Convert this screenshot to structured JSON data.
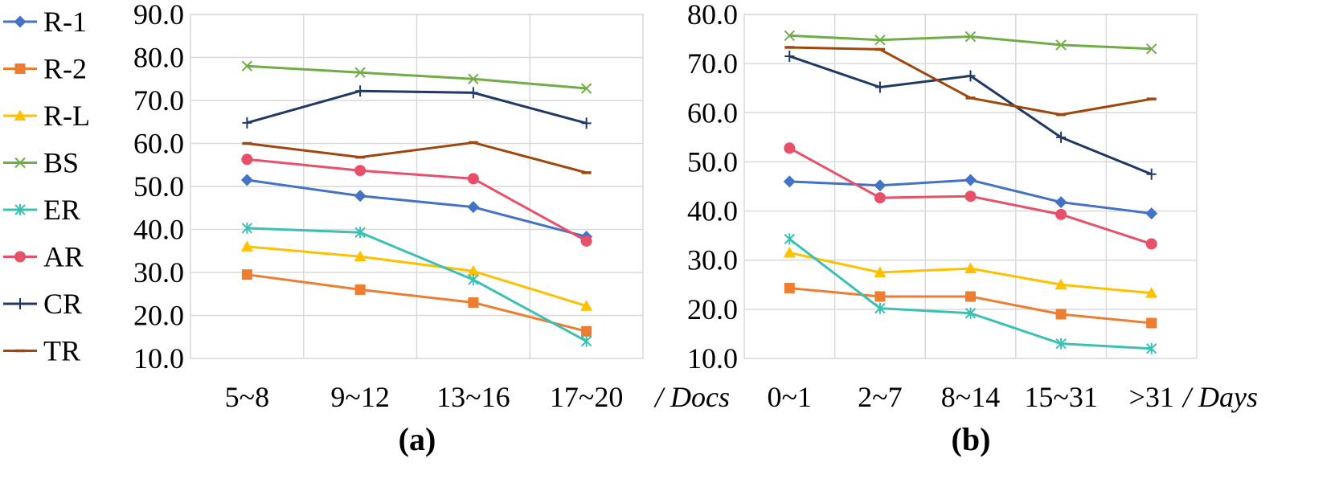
{
  "chart_data": [
    {
      "type": "line",
      "title": "",
      "sublabel": "(a)",
      "xlabel": "/ Docs",
      "ylabel": "",
      "ylim": [
        10,
        90
      ],
      "yticks": [
        10,
        20,
        30,
        40,
        50,
        60,
        70,
        80,
        90
      ],
      "categories": [
        "5~8",
        "9~12",
        "13~16",
        "17~20"
      ],
      "series": [
        {
          "name": "R-1",
          "values": [
            51.5,
            47.8,
            45.2,
            38.3
          ]
        },
        {
          "name": "R-2",
          "values": [
            29.5,
            26.0,
            23.0,
            16.3
          ]
        },
        {
          "name": "R-L",
          "values": [
            36.0,
            33.7,
            30.3,
            22.2
          ]
        },
        {
          "name": "BS",
          "values": [
            78.0,
            76.5,
            75.0,
            72.8
          ]
        },
        {
          "name": "ER",
          "values": [
            40.3,
            39.3,
            28.3,
            14.0
          ]
        },
        {
          "name": "AR",
          "values": [
            56.3,
            53.7,
            51.8,
            37.3
          ]
        },
        {
          "name": "CR",
          "values": [
            64.8,
            72.2,
            71.8,
            64.7
          ]
        },
        {
          "name": "TR",
          "values": [
            60.0,
            56.8,
            60.2,
            53.2
          ]
        }
      ]
    },
    {
      "type": "line",
      "title": "",
      "sublabel": "(b)",
      "xlabel": "/ Days",
      "ylabel": "",
      "ylim": [
        10,
        80
      ],
      "yticks": [
        10,
        20,
        30,
        40,
        50,
        60,
        70,
        80
      ],
      "categories": [
        "0~1",
        "2~7",
        "8~14",
        "15~31",
        ">31"
      ],
      "series": [
        {
          "name": "R-1",
          "values": [
            46.0,
            45.2,
            46.3,
            41.8,
            39.5
          ]
        },
        {
          "name": "R-2",
          "values": [
            24.3,
            22.6,
            22.6,
            19.0,
            17.2
          ]
        },
        {
          "name": "R-L",
          "values": [
            31.5,
            27.5,
            28.3,
            25.0,
            23.3
          ]
        },
        {
          "name": "BS",
          "values": [
            75.7,
            74.8,
            75.5,
            73.8,
            73.0
          ]
        },
        {
          "name": "ER",
          "values": [
            34.3,
            20.2,
            19.2,
            13.0,
            12.0
          ]
        },
        {
          "name": "AR",
          "values": [
            52.8,
            42.7,
            43.0,
            39.3,
            33.3
          ]
        },
        {
          "name": "CR",
          "values": [
            71.5,
            65.2,
            67.5,
            55.0,
            47.5
          ]
        },
        {
          "name": "TR",
          "values": [
            73.3,
            72.9,
            63.0,
            59.6,
            62.8
          ]
        }
      ]
    }
  ],
  "legend": {
    "position": "left",
    "colors": {
      "R-1": "#4472C4",
      "R-2": "#ED7D31",
      "R-L": "#FFC000",
      "BS": "#70AD47",
      "ER": "#3CC0B4",
      "AR": "#E8506A",
      "CR": "#203864",
      "TR": "#9E480E"
    },
    "markers": {
      "R-1": "diamond",
      "R-2": "square",
      "R-L": "triangle",
      "BS": "x",
      "ER": "asterisk",
      "AR": "circle",
      "CR": "plus",
      "TR": "dash"
    }
  }
}
